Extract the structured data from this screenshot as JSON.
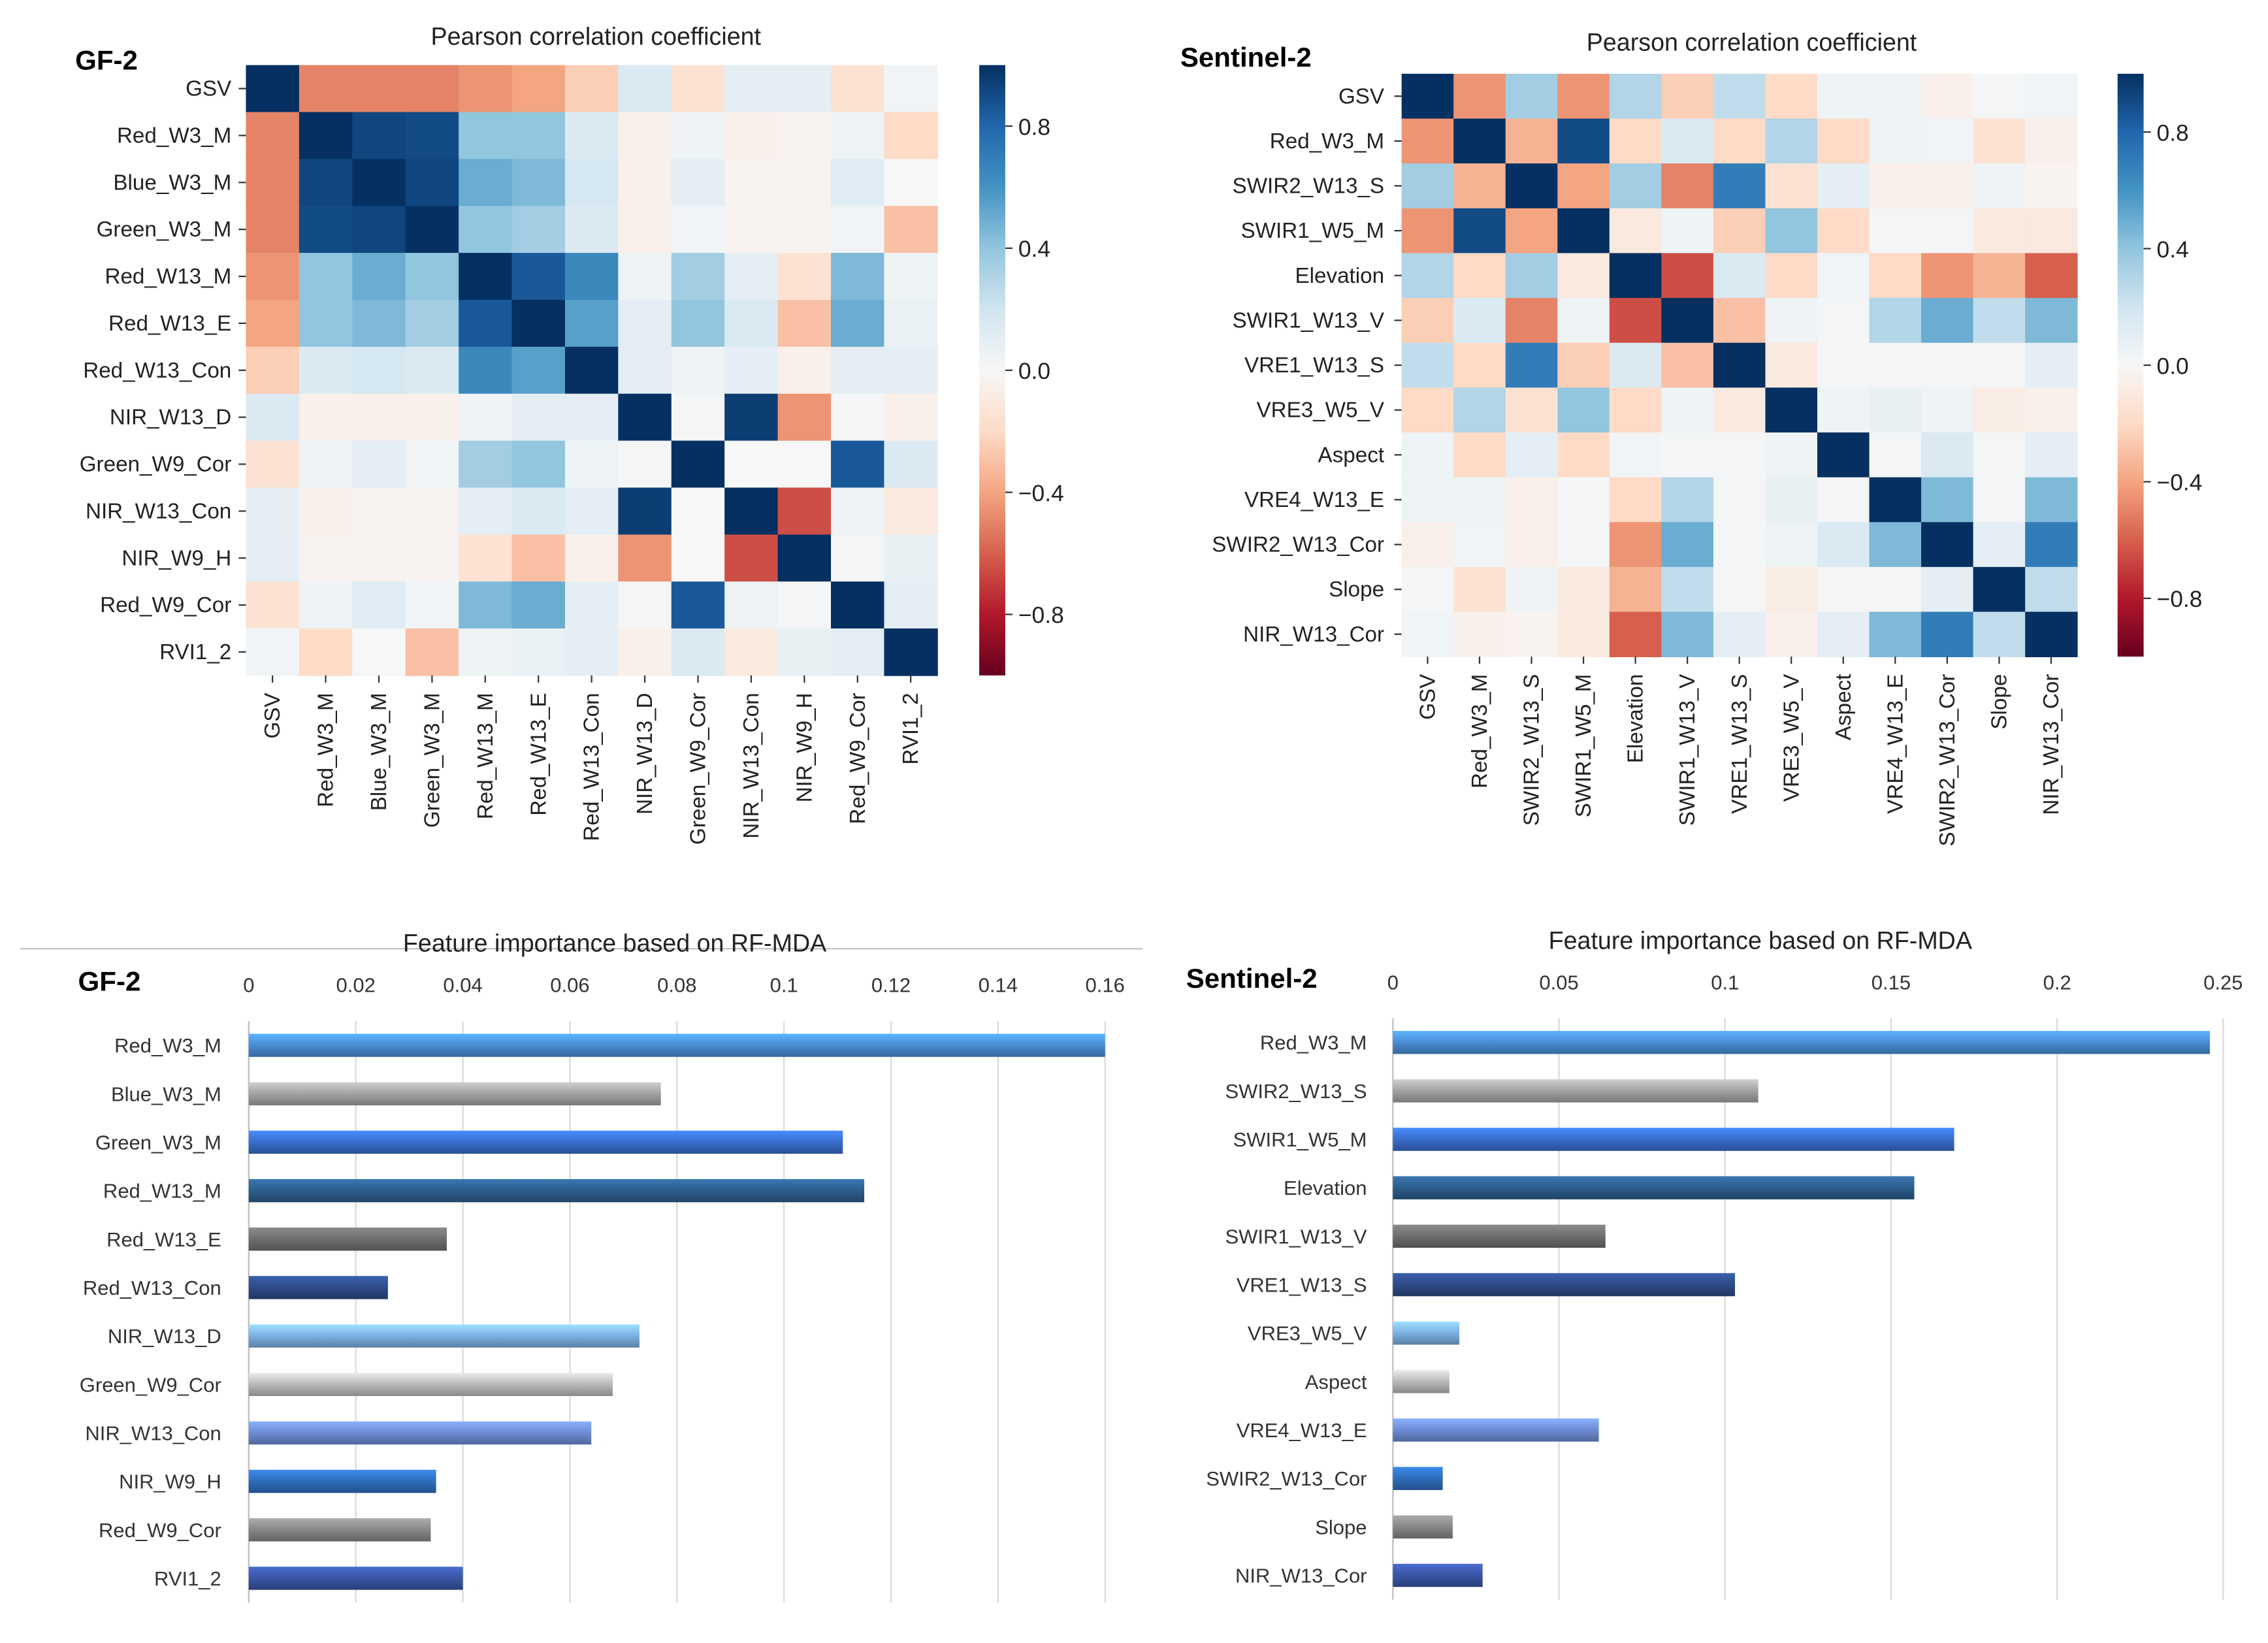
{
  "colors": {
    "colormap": [
      "#67001f",
      "#b2182b",
      "#d6604d",
      "#f4a582",
      "#fddbc7",
      "#f7f7f7",
      "#d1e5f0",
      "#92c5de",
      "#4393c3",
      "#2166ac",
      "#053061"
    ],
    "bar_gf2": [
      "#4a90d9",
      "#a6a6a6",
      "#3a6fd1",
      "#2e5f8f",
      "#707070",
      "#2f4d8a",
      "#7fb3e6",
      "#bdbdbd",
      "#6f8fd8",
      "#2f6fbf",
      "#8a8a8a",
      "#3b57a8"
    ],
    "bar_s2": [
      "#4a90d9",
      "#a6a6a6",
      "#3a6fd1",
      "#2e5f8f",
      "#707070",
      "#2f4d8a",
      "#7fb3e6",
      "#bdbdbd",
      "#6f8fd8",
      "#2f6fbf",
      "#8a8a8a",
      "#3b57a8"
    ]
  },
  "chart_data": [
    {
      "panel": "GF-2",
      "type": "heatmap",
      "title": "Pearson correlation coefficient",
      "vmin": -1,
      "vmax": 1,
      "colorbar_ticks": [
        "0.8",
        "0.4",
        "0.0",
        "−0.4",
        "−0.8"
      ],
      "colorbar_tick_values": [
        0.8,
        0.4,
        0.0,
        -0.4,
        -0.8
      ],
      "labels": [
        "GSV",
        "Red_W3_M",
        "Blue_W3_M",
        "Green_W3_M",
        "Red_W13_M",
        "Red_W13_E",
        "Red_W13_Con",
        "NIR_W13_D",
        "Green_W9_Cor",
        "NIR_W13_Con",
        "NIR_W9_H",
        "Red_W9_Cor",
        "RVI1_2"
      ],
      "matrix": [
        [
          1.0,
          -0.5,
          -0.5,
          -0.5,
          -0.45,
          -0.4,
          -0.25,
          0.15,
          -0.15,
          0.1,
          0.1,
          -0.15,
          0.03
        ],
        [
          -0.5,
          1.0,
          0.92,
          0.9,
          0.4,
          0.4,
          0.15,
          -0.05,
          0.05,
          -0.05,
          -0.03,
          0.05,
          -0.2
        ],
        [
          -0.5,
          0.92,
          1.0,
          0.92,
          0.5,
          0.45,
          0.18,
          -0.05,
          0.1,
          -0.03,
          -0.03,
          0.12,
          0.0
        ],
        [
          -0.5,
          0.9,
          0.92,
          1.0,
          0.4,
          0.35,
          0.15,
          -0.05,
          0.03,
          -0.03,
          -0.03,
          0.03,
          -0.3
        ],
        [
          -0.45,
          0.4,
          0.5,
          0.4,
          1.0,
          0.85,
          0.65,
          0.05,
          0.35,
          0.1,
          -0.15,
          0.45,
          0.05
        ],
        [
          -0.4,
          0.4,
          0.45,
          0.35,
          0.85,
          1.0,
          0.55,
          0.1,
          0.4,
          0.15,
          -0.3,
          0.5,
          0.07
        ],
        [
          -0.25,
          0.15,
          0.18,
          0.15,
          0.65,
          0.55,
          1.0,
          0.1,
          0.05,
          0.1,
          -0.05,
          0.1,
          0.1
        ],
        [
          0.15,
          -0.05,
          -0.05,
          -0.05,
          0.05,
          0.1,
          0.1,
          1.0,
          0.02,
          0.95,
          -0.45,
          0.02,
          -0.05
        ],
        [
          -0.15,
          0.05,
          0.1,
          0.03,
          0.35,
          0.4,
          0.05,
          0.02,
          1.0,
          0.0,
          0.0,
          0.85,
          0.15
        ],
        [
          0.1,
          -0.05,
          -0.03,
          -0.03,
          0.1,
          0.15,
          0.1,
          0.95,
          0.0,
          1.0,
          -0.65,
          0.05,
          -0.1
        ],
        [
          0.1,
          -0.03,
          -0.03,
          -0.03,
          -0.15,
          -0.3,
          -0.05,
          -0.45,
          0.0,
          -0.65,
          1.0,
          0.02,
          0.08
        ],
        [
          -0.15,
          0.05,
          0.12,
          0.03,
          0.45,
          0.5,
          0.1,
          0.02,
          0.85,
          0.05,
          0.02,
          1.0,
          0.1
        ],
        [
          0.03,
          -0.2,
          0.0,
          -0.3,
          0.05,
          0.07,
          0.1,
          -0.05,
          0.15,
          -0.1,
          0.08,
          0.1,
          1.0
        ]
      ]
    },
    {
      "panel": "Sentinel-2",
      "type": "heatmap",
      "title": "Pearson correlation coefficient",
      "vmin": -1,
      "vmax": 1,
      "colorbar_ticks": [
        "0.8",
        "0.4",
        "0.0",
        "−0.4",
        "−0.8"
      ],
      "colorbar_tick_values": [
        0.8,
        0.4,
        0.0,
        -0.4,
        -0.8
      ],
      "labels": [
        "GSV",
        "Red_W3_M",
        "SWIR2_W13_S",
        "SWIR1_W5_M",
        "Elevation",
        "SWIR1_W13_V",
        "VRE1_W13_S",
        "VRE3_W5_V",
        "Aspect",
        "VRE4_W13_E",
        "SWIR2_W13_Cor",
        "Slope",
        "NIR_W13_Cor"
      ],
      "matrix": [
        [
          1.0,
          -0.45,
          0.35,
          -0.45,
          0.3,
          -0.25,
          0.25,
          -0.2,
          0.05,
          0.05,
          -0.05,
          0.02,
          0.03
        ],
        [
          -0.45,
          1.0,
          -0.35,
          0.9,
          -0.2,
          0.15,
          -0.2,
          0.3,
          -0.2,
          0.05,
          0.03,
          -0.15,
          -0.05
        ],
        [
          0.35,
          -0.35,
          1.0,
          -0.4,
          0.35,
          -0.5,
          0.7,
          -0.15,
          0.1,
          -0.05,
          -0.05,
          0.05,
          -0.03
        ],
        [
          -0.45,
          0.9,
          -0.4,
          1.0,
          -0.1,
          0.05,
          -0.25,
          0.4,
          -0.2,
          0.02,
          0.02,
          -0.1,
          -0.1
        ],
        [
          0.3,
          -0.2,
          0.35,
          -0.1,
          1.0,
          -0.65,
          0.15,
          -0.2,
          0.03,
          -0.2,
          -0.45,
          -0.35,
          -0.6
        ],
        [
          -0.25,
          0.15,
          -0.5,
          0.05,
          -0.65,
          1.0,
          -0.3,
          0.05,
          0.02,
          0.3,
          0.5,
          0.25,
          0.45
        ],
        [
          0.25,
          -0.2,
          0.7,
          -0.25,
          0.15,
          -0.3,
          1.0,
          -0.1,
          0.02,
          0.02,
          0.02,
          0.02,
          0.1
        ],
        [
          -0.2,
          0.3,
          -0.15,
          0.4,
          -0.2,
          0.05,
          -0.1,
          1.0,
          0.05,
          0.08,
          0.05,
          -0.08,
          -0.05
        ],
        [
          0.05,
          -0.2,
          0.1,
          -0.2,
          0.03,
          0.02,
          0.02,
          0.05,
          1.0,
          0.02,
          0.15,
          0.02,
          0.1
        ],
        [
          0.05,
          0.05,
          -0.05,
          0.02,
          -0.2,
          0.3,
          0.02,
          0.08,
          0.02,
          1.0,
          0.45,
          0.02,
          0.45
        ],
        [
          -0.05,
          0.03,
          -0.05,
          0.02,
          -0.45,
          0.5,
          0.02,
          0.05,
          0.15,
          0.45,
          1.0,
          0.1,
          0.7
        ],
        [
          0.02,
          -0.15,
          0.05,
          -0.1,
          -0.35,
          0.25,
          0.02,
          -0.08,
          0.02,
          0.02,
          0.1,
          1.0,
          0.25
        ],
        [
          0.03,
          -0.05,
          -0.03,
          -0.1,
          -0.6,
          0.45,
          0.1,
          -0.05,
          0.1,
          0.45,
          0.7,
          0.25,
          1.0
        ]
      ]
    },
    {
      "panel": "GF-2",
      "type": "bar",
      "orientation": "horizontal",
      "title": "Feature importance based on RF-MDA",
      "categories": [
        "Red_W3_M",
        "Blue_W3_M",
        "Green_W3_M",
        "Red_W13_M",
        "Red_W13_E",
        "Red_W13_Con",
        "NIR_W13_D",
        "Green_W9_Cor",
        "NIR_W13_Con",
        "NIR_W9_H",
        "Red_W9_Cor",
        "RVI1_2"
      ],
      "values": [
        0.16,
        0.077,
        0.111,
        0.115,
        0.037,
        0.026,
        0.073,
        0.068,
        0.064,
        0.035,
        0.034,
        0.04
      ],
      "xlim": [
        0,
        0.16
      ],
      "xticks": [
        0,
        0.02,
        0.04,
        0.06,
        0.08,
        0.1,
        0.12,
        0.14,
        0.16
      ],
      "xtick_labels": [
        "0",
        "0.02",
        "0.04",
        "0.06",
        "0.08",
        "0.1",
        "0.12",
        "0.14",
        "0.16"
      ],
      "grid": true
    },
    {
      "panel": "Sentinel-2",
      "type": "bar",
      "orientation": "horizontal",
      "title": "Feature importance based on RF-MDA",
      "categories": [
        "Red_W3_M",
        "SWIR2_W13_S",
        "SWIR1_W5_M",
        "Elevation",
        "SWIR1_W13_V",
        "VRE1_W13_S",
        "VRE3_W5_V",
        "Aspect",
        "VRE4_W13_E",
        "SWIR2_W13_Cor",
        "Slope",
        "NIR_W13_Cor"
      ],
      "values": [
        0.246,
        0.11,
        0.169,
        0.157,
        0.064,
        0.103,
        0.02,
        0.017,
        0.062,
        0.015,
        0.018,
        0.027
      ],
      "xlim": [
        0,
        0.25
      ],
      "xticks": [
        0,
        0.05,
        0.1,
        0.15,
        0.2,
        0.25
      ],
      "xtick_labels": [
        "0",
        "0.05",
        "0.1",
        "0.15",
        "0.2",
        "0.25"
      ],
      "grid": true
    }
  ]
}
